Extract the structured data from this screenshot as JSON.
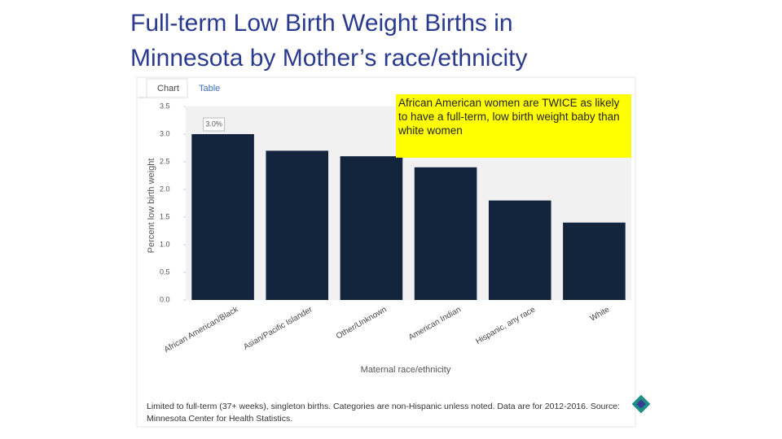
{
  "slide_title": "Full-term Low Birth Weight Births in Minnesota by Mother’s race/ethnicity",
  "tabs": [
    "Chart",
    "Table"
  ],
  "callout": "African American women are TWICE as likely to have a full-term, low birth weight baby than white women",
  "footnote": "Limited to full-term (37+ weeks), singleton births. Categories are non-Hispanic unless noted. Data are for 2012-2016. Source: Minnesota Center for Health Statistics.",
  "chart_data": {
    "type": "bar",
    "categories": [
      "African American/Black",
      "Asian/Pacific Islander",
      "Other/Unknown",
      "American Indian",
      "Hispanic, any race",
      "White"
    ],
    "values": [
      3.0,
      2.7,
      2.6,
      2.4,
      1.8,
      1.4
    ],
    "value_labels": [
      "3.0%",
      null,
      null,
      null,
      null,
      null
    ],
    "color": "#13253d",
    "x_label": "Maternal race/ethnicity",
    "y_label": "Percent low birth weight",
    "ylim": [
      0,
      3.5
    ],
    "yticks": [
      {
        "value": 0,
        "label": "0.0"
      },
      {
        "value": 0.5,
        "label": "0.5"
      },
      {
        "value": 1,
        "label": "1.0"
      },
      {
        "value": 1.5,
        "label": "1.5"
      },
      {
        "value": 2,
        "label": "2.0"
      },
      {
        "value": 2.5,
        "label": "2.5"
      },
      {
        "value": 3,
        "label": "3.0"
      },
      {
        "value": 3.5,
        "label": "3.5"
      }
    ],
    "grid": false
  }
}
